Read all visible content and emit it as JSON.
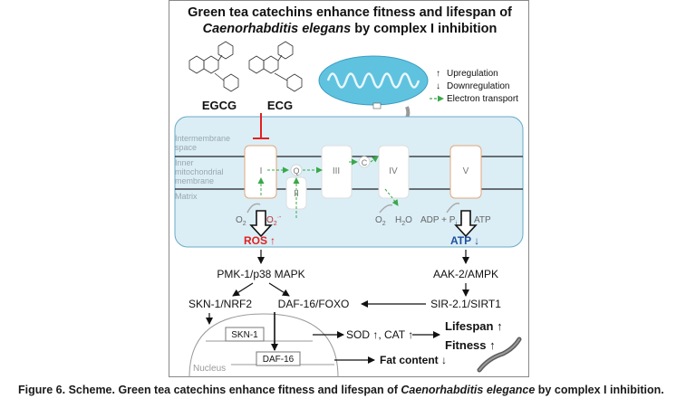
{
  "title": {
    "line1": "Green tea catechins enhance fitness and lifespan of",
    "line2_italic": "Caenorhabditis elegans",
    "line2_rest": " by complex I inhibition"
  },
  "compounds": {
    "egcg": "EGCG",
    "ecg": "ECG"
  },
  "legend": {
    "up": "Upregulation",
    "down": "Downregulation",
    "transport": "Electron transport"
  },
  "compartments": {
    "ims_line1": "Intermembrane",
    "ims_line2": "space",
    "imm_line1": "Inner",
    "imm_line2": "mitochondrial",
    "imm_line3": "membrane",
    "matrix": "Matrix"
  },
  "complexes": {
    "c1": "I",
    "c2": "II",
    "c3": "III",
    "c4": "IV",
    "c5": "V",
    "q": "Q",
    "c": "C"
  },
  "reactions": {
    "o2_left": "O",
    "o2_left_sub": "2",
    "superoxide": "O",
    "superoxide_sub": "2",
    "superoxide_sup": "·-",
    "o2_right": "O",
    "o2_right_sub": "2",
    "h2o": "H",
    "h2o_sub": "2",
    "h2o_o": "O",
    "adp": "ADP + P",
    "adp_sub": "i",
    "atp_text": "ATP"
  },
  "outputs": {
    "ros": "ROS",
    "ros_arrow": "↑",
    "atp": "ATP",
    "atp_arrow": "↓"
  },
  "pathway": {
    "pmk": "PMK-1/p38 MAPK",
    "aak": "AAK-2/AMPK",
    "skn_daf": "SKN-1/NRF2",
    "daf": "DAF-16/FOXO",
    "sir": "SIR-2.1/SIRT1",
    "skn_box": "SKN-1",
    "daf_box": "DAF-16",
    "nucleus": "Nucleus",
    "sod": "SOD ↑, CAT ↑",
    "lifespan": "Lifespan ↑",
    "fitness": "Fitness ↑",
    "fat": "Fat content ↓"
  },
  "caption": {
    "bold": "Figure 6. Scheme. Green tea catechins enhance fitness and lifespan of ",
    "italic": "Caenorhabditis elegance",
    "rest": " by complex I inhibition."
  },
  "colors": {
    "membrane_fill": "#dbeef6",
    "membrane_stroke": "#6aa9c6",
    "complex_stroke": "#e3a77a",
    "electron_arrow": "#3aa84a",
    "inhibit": "#e02020",
    "ros": "#e02020",
    "atp": "#1f4e9c",
    "mito": "#5fc3e0"
  }
}
